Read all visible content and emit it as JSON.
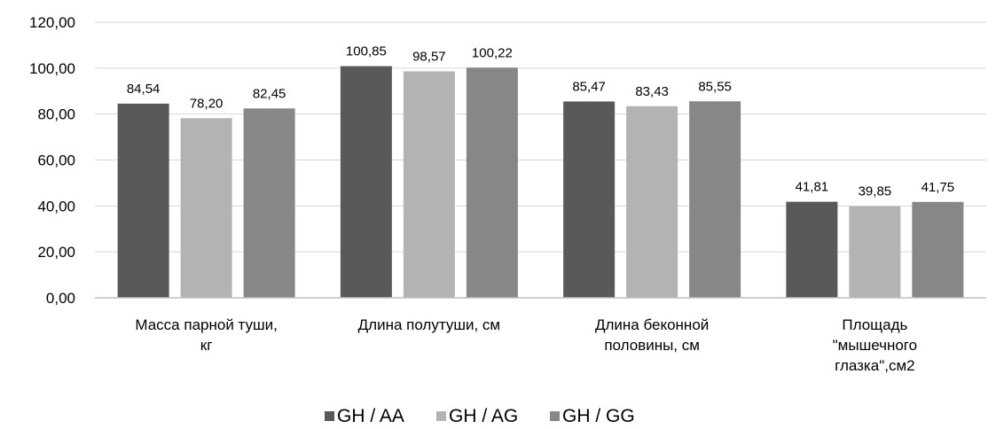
{
  "chart_data": {
    "type": "bar",
    "title": "",
    "xlabel": "",
    "ylabel": "",
    "categories": [
      [
        "Масса парной  туши,",
        "кг"
      ],
      [
        "Длина  полутуши,  см"
      ],
      [
        "Длина  беконной",
        "половины,  см"
      ],
      [
        "Площадь",
        "\"мышечного",
        "глазка\",см2"
      ]
    ],
    "series": [
      {
        "name": "GH / AA",
        "color": "#595959",
        "values": [
          84.54,
          100.85,
          85.47,
          41.81
        ],
        "labels": [
          "84,54",
          "100,85",
          "85,47",
          "41,81"
        ]
      },
      {
        "name": "GH / AG",
        "color": "#b3b3b3",
        "values": [
          78.2,
          98.57,
          83.43,
          39.85
        ],
        "labels": [
          "78,20",
          "98,57",
          "83,43",
          "39,85"
        ]
      },
      {
        "name": "GH / GG",
        "color": "#878787",
        "values": [
          82.45,
          100.22,
          85.55,
          41.75
        ],
        "labels": [
          "82,45",
          "100,22",
          "85,55",
          "41,75"
        ]
      }
    ],
    "ylim": [
      0,
      120
    ],
    "yticks": [
      {
        "value": 0,
        "label": "0,00"
      },
      {
        "value": 20,
        "label": "20,00"
      },
      {
        "value": 40,
        "label": "40,00"
      },
      {
        "value": 60,
        "label": "60,00"
      },
      {
        "value": 80,
        "label": "80,00"
      },
      {
        "value": 100,
        "label": "100,00"
      },
      {
        "value": 120,
        "label": "120,00"
      }
    ],
    "grid": true,
    "legend_position": "bottom",
    "gridline_color": "#d9d9d9",
    "axis_color": "#bfbfbf"
  }
}
